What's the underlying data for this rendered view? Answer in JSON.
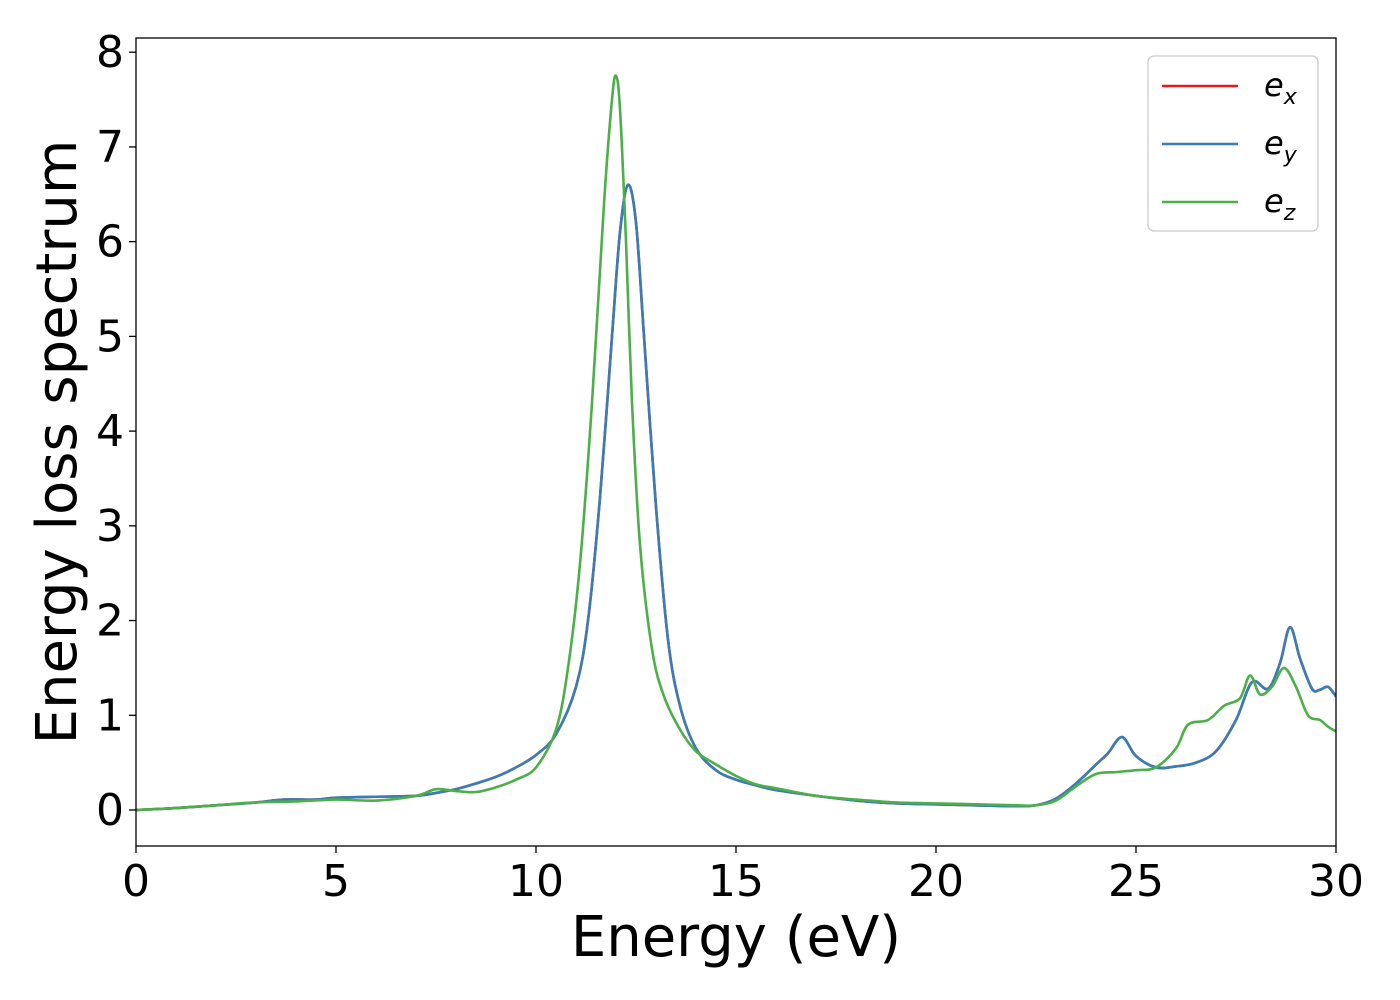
{
  "chart_data": {
    "type": "line",
    "title": "",
    "xlabel": "Energy (eV)",
    "ylabel": "Energy loss spectrum",
    "xlim": [
      0,
      30
    ],
    "ylim": [
      -0.38,
      8.15
    ],
    "xticks": [
      0,
      5,
      10,
      15,
      20,
      25,
      30
    ],
    "yticks": [
      0,
      1,
      2,
      3,
      4,
      5,
      6,
      7,
      8
    ],
    "grid": false,
    "legend_position": "top-right",
    "series": [
      {
        "name": "e_x",
        "label_base": "e",
        "label_sub": "x",
        "color": "#e41a1c",
        "x": [
          0,
          1,
          2,
          3,
          3.7,
          4.5,
          5,
          6,
          7,
          7.5,
          8,
          8.5,
          9,
          9.5,
          10,
          10.5,
          11,
          11.3,
          11.6,
          11.9,
          12.1,
          12.3,
          12.5,
          12.7,
          13,
          13.3,
          13.6,
          14,
          14.5,
          15,
          15.5,
          16,
          17,
          18,
          19,
          20,
          21,
          22,
          22.5,
          23,
          23.5,
          24,
          24.3,
          24.65,
          25,
          25.5,
          26,
          26.5,
          27,
          27.5,
          27.9,
          28.3,
          28.6,
          28.85,
          29.1,
          29.4,
          29.6,
          29.8,
          30
        ],
        "y": [
          0,
          0.02,
          0.05,
          0.08,
          0.11,
          0.11,
          0.13,
          0.14,
          0.15,
          0.18,
          0.22,
          0.28,
          0.35,
          0.45,
          0.58,
          0.8,
          1.3,
          2.0,
          3.3,
          5.0,
          6.1,
          6.6,
          6.2,
          5.0,
          3.2,
          1.8,
          1.1,
          0.65,
          0.42,
          0.32,
          0.26,
          0.21,
          0.15,
          0.1,
          0.07,
          0.06,
          0.05,
          0.04,
          0.05,
          0.12,
          0.28,
          0.48,
          0.6,
          0.77,
          0.57,
          0.45,
          0.46,
          0.5,
          0.62,
          0.95,
          1.35,
          1.28,
          1.55,
          1.93,
          1.6,
          1.28,
          1.27,
          1.3,
          1.2
        ]
      },
      {
        "name": "e_y",
        "label_base": "e",
        "label_sub": "y",
        "color": "#377eb8",
        "x": [
          0,
          1,
          2,
          3,
          3.7,
          4.5,
          5,
          6,
          7,
          7.5,
          8,
          8.5,
          9,
          9.5,
          10,
          10.5,
          11,
          11.3,
          11.6,
          11.9,
          12.1,
          12.3,
          12.5,
          12.7,
          13,
          13.3,
          13.6,
          14,
          14.5,
          15,
          15.5,
          16,
          17,
          18,
          19,
          20,
          21,
          22,
          22.5,
          23,
          23.5,
          24,
          24.3,
          24.65,
          25,
          25.5,
          26,
          26.5,
          27,
          27.5,
          27.9,
          28.3,
          28.6,
          28.85,
          29.1,
          29.4,
          29.6,
          29.8,
          30
        ],
        "y": [
          0,
          0.02,
          0.05,
          0.08,
          0.11,
          0.11,
          0.13,
          0.14,
          0.15,
          0.18,
          0.22,
          0.28,
          0.35,
          0.45,
          0.58,
          0.8,
          1.3,
          2.0,
          3.3,
          5.0,
          6.1,
          6.6,
          6.2,
          5.0,
          3.2,
          1.8,
          1.1,
          0.65,
          0.42,
          0.32,
          0.26,
          0.21,
          0.15,
          0.1,
          0.07,
          0.06,
          0.05,
          0.04,
          0.05,
          0.12,
          0.28,
          0.48,
          0.6,
          0.77,
          0.57,
          0.45,
          0.46,
          0.5,
          0.62,
          0.95,
          1.35,
          1.28,
          1.55,
          1.93,
          1.6,
          1.28,
          1.27,
          1.3,
          1.2
        ]
      },
      {
        "name": "e_z",
        "label_base": "e",
        "label_sub": "z",
        "color": "#4daf4a",
        "x": [
          0,
          1,
          2,
          3,
          4,
          5,
          6,
          7,
          7.5,
          8,
          8.5,
          9,
          9.5,
          10,
          10.5,
          10.8,
          11.1,
          11.4,
          11.7,
          11.9,
          12.0,
          12.1,
          12.25,
          12.4,
          12.6,
          12.9,
          13.2,
          13.6,
          14,
          14.5,
          15,
          15.5,
          16,
          17,
          18,
          19,
          20,
          21,
          22,
          22.5,
          23,
          23.5,
          24,
          24.5,
          25,
          25.5,
          26,
          26.3,
          26.8,
          27.2,
          27.6,
          27.85,
          28.1,
          28.4,
          28.7,
          29.0,
          29.3,
          29.6,
          29.8,
          30
        ],
        "y": [
          0,
          0.02,
          0.05,
          0.08,
          0.09,
          0.11,
          0.1,
          0.15,
          0.22,
          0.2,
          0.19,
          0.24,
          0.32,
          0.45,
          0.85,
          1.5,
          2.6,
          4.3,
          6.4,
          7.5,
          7.75,
          7.4,
          6.0,
          4.3,
          2.8,
          1.7,
          1.2,
          0.85,
          0.62,
          0.48,
          0.36,
          0.27,
          0.23,
          0.15,
          0.11,
          0.08,
          0.07,
          0.06,
          0.05,
          0.05,
          0.1,
          0.25,
          0.38,
          0.4,
          0.42,
          0.45,
          0.65,
          0.9,
          0.95,
          1.1,
          1.18,
          1.42,
          1.22,
          1.3,
          1.5,
          1.3,
          1.0,
          0.95,
          0.88,
          0.83
        ]
      }
    ]
  }
}
